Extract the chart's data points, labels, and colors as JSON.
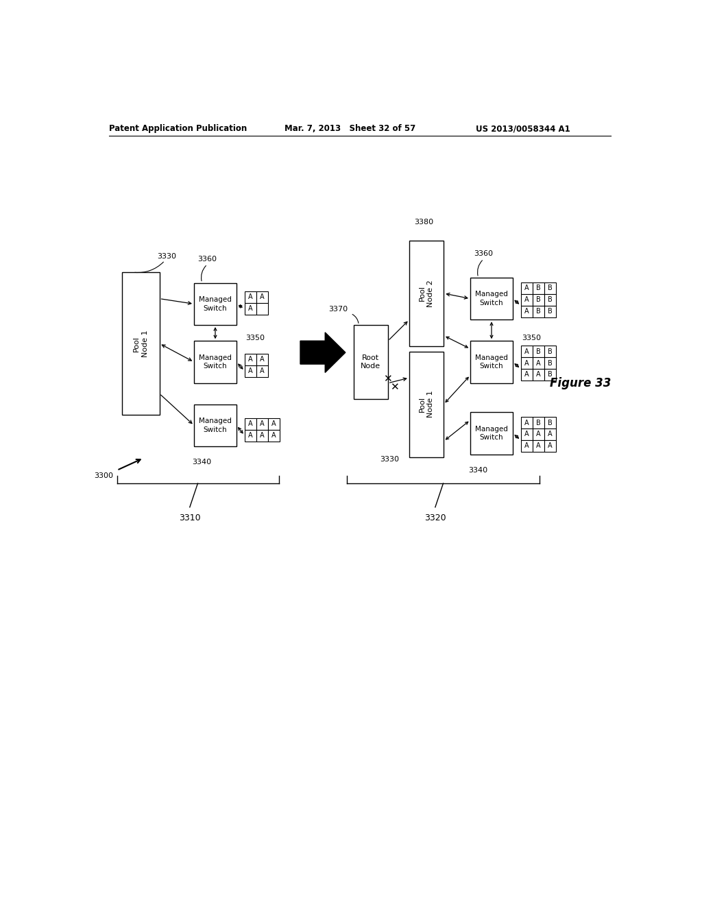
{
  "header_left": "Patent Application Publication",
  "header_mid": "Mar. 7, 2013   Sheet 32 of 57",
  "header_right": "US 2013/0058344 A1",
  "figure_label": "Figure 33",
  "bg_color": "#ffffff",
  "left": {
    "bracket_label": "3310",
    "pool_node_label": "Pool\nNode 1",
    "pool_node_id": "3330",
    "sw_top_label": "Managed\nSwitch",
    "sw_top_id": "3360",
    "sw_mid_label": "Managed\nSwitch",
    "sw_mid_id": "3350",
    "sw_bot_label": "Managed\nSwitch",
    "sw_bot_id": "3340",
    "grid_top": [
      [
        "A",
        "A"
      ],
      [
        "A",
        ""
      ]
    ],
    "grid_mid": [
      [
        "A",
        "A"
      ],
      [
        "A",
        "A"
      ]
    ],
    "grid_bot": [
      [
        "A",
        "A",
        "A"
      ],
      [
        "A",
        "A",
        "A"
      ]
    ],
    "label_3300": "3300"
  },
  "right": {
    "bracket_label": "3320",
    "root_label": "Root\nNode",
    "root_id": "3370",
    "pool2_label": "Pool\nNode 2",
    "pool2_id": "3380",
    "pool1_label": "Pool\nNode 1",
    "pool1_id": "3330",
    "sw_top_label": "Managed\nSwitch",
    "sw_top_id": "3360",
    "sw_mid_label": "Managed\nSwitch",
    "sw_mid_id": "3350",
    "sw_bot_label": "Managed\nSwitch",
    "sw_bot_id": "3340",
    "grid_top": [
      [
        "A",
        "B",
        "B"
      ],
      [
        "A",
        "B",
        "B"
      ],
      [
        "A",
        "B",
        "B"
      ]
    ],
    "grid_mid": [
      [
        "A",
        "B",
        "B"
      ],
      [
        "A",
        "A",
        "B"
      ],
      [
        "A",
        "A",
        "B"
      ]
    ],
    "grid_bot": [
      [
        "A",
        "B",
        "B"
      ],
      [
        "A",
        "A",
        "A"
      ],
      [
        "A",
        "A",
        "A"
      ]
    ]
  }
}
